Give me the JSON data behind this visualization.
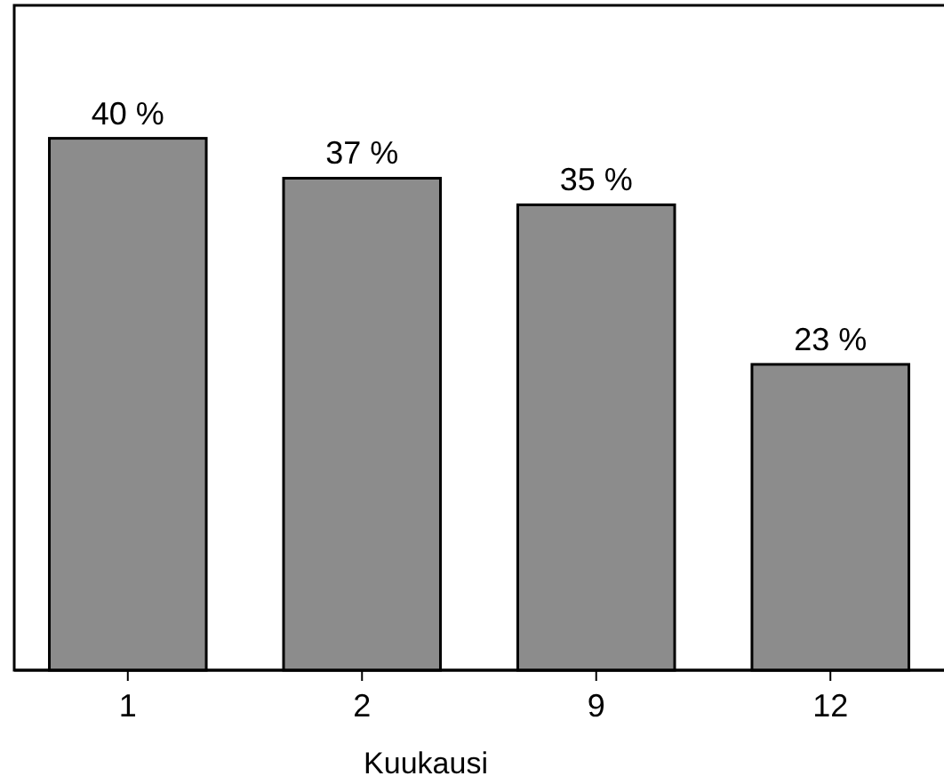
{
  "chart_data": {
    "type": "bar",
    "xlabel": "Kuukausi",
    "categories": [
      "1",
      "2",
      "9",
      "12"
    ],
    "values": [
      40,
      37,
      35,
      23
    ],
    "value_labels": [
      "40 %",
      "37 %",
      "35 %",
      "23 %"
    ],
    "color": "#8c8c8c",
    "ylim": [
      0,
      50
    ],
    "tick_labels": "x"
  }
}
